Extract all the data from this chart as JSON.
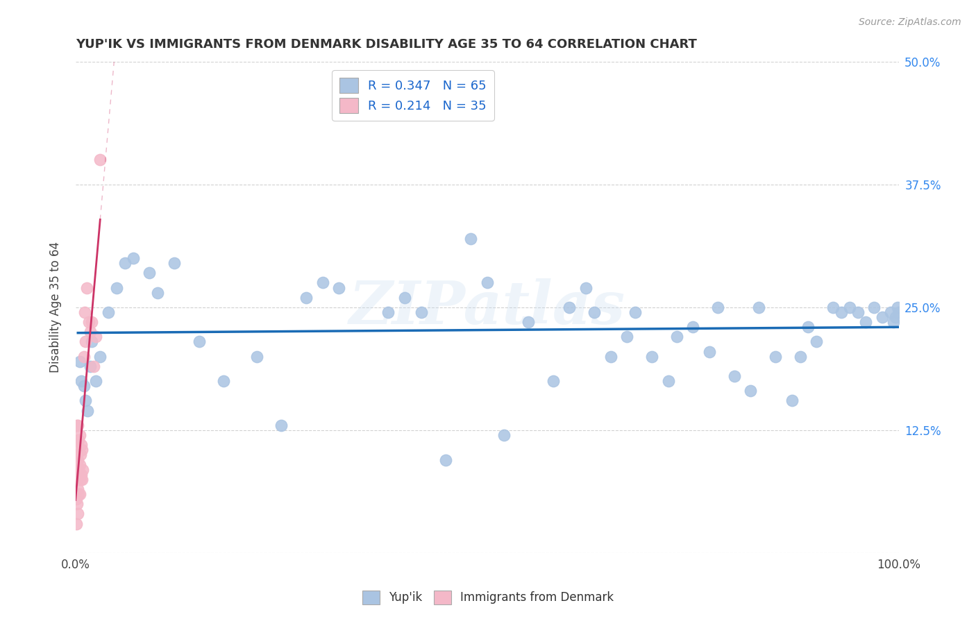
{
  "title": "YUP'IK VS IMMIGRANTS FROM DENMARK DISABILITY AGE 35 TO 64 CORRELATION CHART",
  "source": "Source: ZipAtlas.com",
  "ylabel": "Disability Age 35 to 64",
  "xlim": [
    0,
    1.0
  ],
  "ylim": [
    0,
    0.5
  ],
  "ytick_positions": [
    0.0,
    0.125,
    0.25,
    0.375,
    0.5
  ],
  "ytick_labels_right": [
    "",
    "12.5%",
    "25.0%",
    "37.5%",
    "50.0%"
  ],
  "xtick_positions": [
    0.0,
    0.5,
    1.0
  ],
  "xtick_labels": [
    "0.0%",
    "",
    "100.0%"
  ],
  "r_yupik": 0.347,
  "n_yupik": 65,
  "r_denmark": 0.214,
  "n_denmark": 35,
  "legend_labels": [
    "Yup'ik",
    "Immigrants from Denmark"
  ],
  "yupik_color": "#aac4e2",
  "denmark_color": "#f4b8c8",
  "trend_yupik_color": "#1a6bb5",
  "trend_denmark_color": "#cc3366",
  "watermark": "ZIPatlas",
  "yupik_x": [
    0.005,
    0.007,
    0.01,
    0.012,
    0.015,
    0.018,
    0.02,
    0.025,
    0.03,
    0.04,
    0.05,
    0.06,
    0.07,
    0.09,
    0.1,
    0.12,
    0.15,
    0.18,
    0.22,
    0.25,
    0.28,
    0.3,
    0.32,
    0.35,
    0.38,
    0.4,
    0.42,
    0.45,
    0.48,
    0.5,
    0.52,
    0.55,
    0.58,
    0.6,
    0.62,
    0.63,
    0.65,
    0.67,
    0.68,
    0.7,
    0.72,
    0.73,
    0.75,
    0.77,
    0.78,
    0.8,
    0.82,
    0.83,
    0.85,
    0.87,
    0.88,
    0.89,
    0.9,
    0.92,
    0.93,
    0.94,
    0.95,
    0.96,
    0.97,
    0.98,
    0.99,
    0.993,
    0.996,
    0.998,
    1.0
  ],
  "yupik_y": [
    0.195,
    0.175,
    0.17,
    0.155,
    0.145,
    0.19,
    0.215,
    0.175,
    0.2,
    0.245,
    0.27,
    0.295,
    0.3,
    0.285,
    0.265,
    0.295,
    0.215,
    0.175,
    0.2,
    0.13,
    0.26,
    0.275,
    0.27,
    0.455,
    0.245,
    0.26,
    0.245,
    0.095,
    0.32,
    0.275,
    0.12,
    0.235,
    0.175,
    0.25,
    0.27,
    0.245,
    0.2,
    0.22,
    0.245,
    0.2,
    0.175,
    0.22,
    0.23,
    0.205,
    0.25,
    0.18,
    0.165,
    0.25,
    0.2,
    0.155,
    0.2,
    0.23,
    0.215,
    0.25,
    0.245,
    0.25,
    0.245,
    0.235,
    0.25,
    0.24,
    0.245,
    0.235,
    0.24,
    0.25,
    0.245
  ],
  "denmark_x": [
    0.001,
    0.001,
    0.001,
    0.001,
    0.002,
    0.002,
    0.002,
    0.002,
    0.003,
    0.003,
    0.003,
    0.003,
    0.004,
    0.004,
    0.004,
    0.005,
    0.005,
    0.005,
    0.006,
    0.006,
    0.007,
    0.007,
    0.008,
    0.008,
    0.009,
    0.01,
    0.011,
    0.012,
    0.014,
    0.016,
    0.018,
    0.02,
    0.022,
    0.025,
    0.03
  ],
  "denmark_y": [
    0.03,
    0.055,
    0.08,
    0.11,
    0.05,
    0.075,
    0.1,
    0.13,
    0.04,
    0.065,
    0.095,
    0.13,
    0.06,
    0.085,
    0.115,
    0.06,
    0.09,
    0.12,
    0.075,
    0.1,
    0.08,
    0.11,
    0.075,
    0.105,
    0.085,
    0.2,
    0.245,
    0.215,
    0.27,
    0.235,
    0.225,
    0.235,
    0.19,
    0.22,
    0.4
  ],
  "denmark_trend_x0": 0.0,
  "denmark_trend_x1": 0.03,
  "yupik_trend_x0": 0.003,
  "yupik_trend_x1": 1.0
}
